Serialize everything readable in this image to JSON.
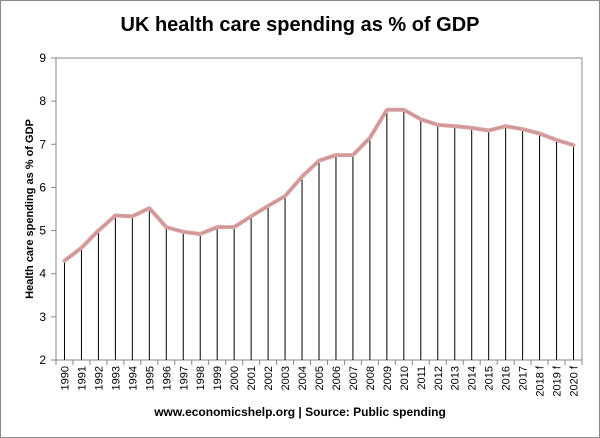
{
  "chart_data": {
    "type": "line",
    "title": "UK health care spending as % of GDP",
    "ylabel": "Health care spending as % of GDP",
    "xlabel": "",
    "footer": "www.economicshelp.org | Source: Public spending",
    "ylim": [
      2,
      9
    ],
    "yticks": [
      2,
      3,
      4,
      5,
      6,
      7,
      8,
      9
    ],
    "drop_lines": true,
    "categories": [
      "1990",
      "1991",
      "1992",
      "1993",
      "1994",
      "1995",
      "1996",
      "1997",
      "1998",
      "1999",
      "2000",
      "2001",
      "2002",
      "2003",
      "2004",
      "2005",
      "2006",
      "2007",
      "2008",
      "2009",
      "2010",
      "2011",
      "2012",
      "2013",
      "2014",
      "2015",
      "2016",
      "2017",
      "2018 f",
      "2019 f",
      "2020 f"
    ],
    "series": [
      {
        "name": "",
        "color": "#d8a0a0",
        "values": [
          4.3,
          4.6,
          5.0,
          5.35,
          5.33,
          5.52,
          5.08,
          4.97,
          4.92,
          5.08,
          5.08,
          5.33,
          5.57,
          5.8,
          6.25,
          6.62,
          6.75,
          6.75,
          7.15,
          7.8,
          7.8,
          7.58,
          7.45,
          7.42,
          7.38,
          7.32,
          7.42,
          7.35,
          7.25,
          7.1,
          6.98
        ]
      }
    ]
  }
}
